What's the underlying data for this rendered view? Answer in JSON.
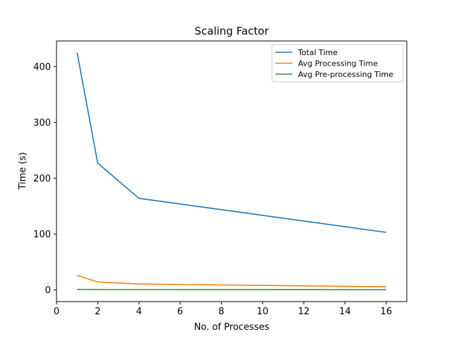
{
  "chart_data": {
    "type": "line",
    "title": "Scaling Factor",
    "xlabel": "No. of Processes",
    "ylabel": "Time (s)",
    "xlim": [
      0,
      17
    ],
    "ylim": [
      -21,
      446
    ],
    "xticks": [
      0,
      2,
      4,
      6,
      8,
      10,
      12,
      14,
      16
    ],
    "yticks": [
      0,
      100,
      200,
      300,
      400
    ],
    "grid": false,
    "legend_position": "top-right",
    "x": [
      1,
      2,
      4,
      16
    ],
    "series": [
      {
        "name": "Total Time",
        "color": "#1f77b4",
        "values": [
          425,
          227,
          164,
          103
        ]
      },
      {
        "name": "Avg Processing Time",
        "color": "#ff7f0e",
        "values": [
          26,
          14,
          10.5,
          5.5
        ]
      },
      {
        "name": "Avg Pre-processing Time",
        "color": "#2ca02c",
        "values": [
          0.8,
          0.6,
          0.5,
          0.3
        ]
      }
    ]
  }
}
